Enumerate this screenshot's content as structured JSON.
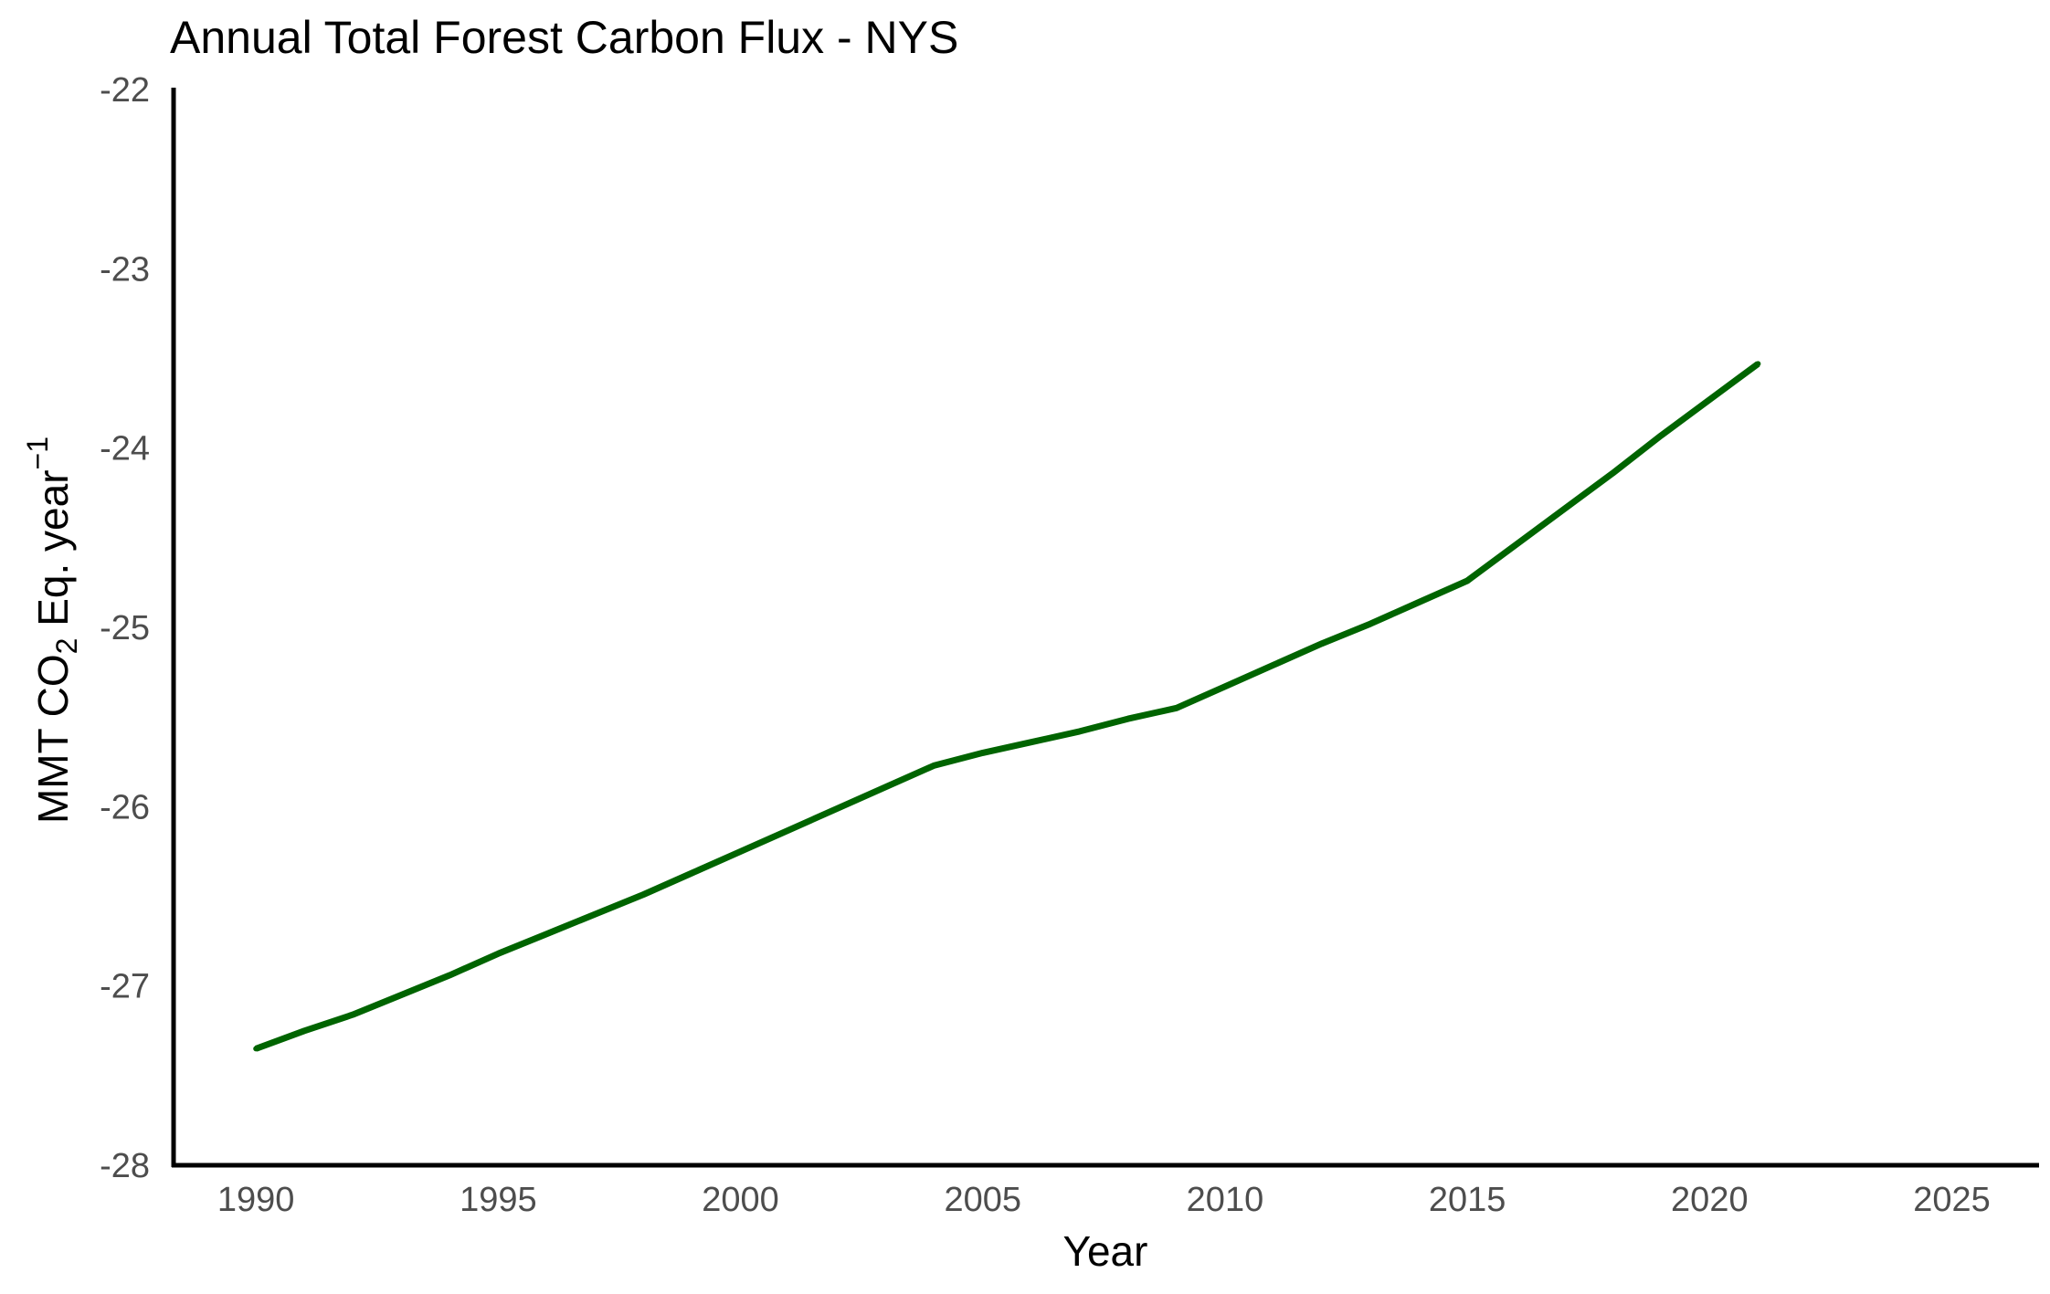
{
  "chart_data": {
    "type": "line",
    "title": "Annual Total Forest Carbon Flux - NYS",
    "xlabel": "Year",
    "ylabel": {
      "prefix": "MMT CO",
      "subscript": "2",
      "middle": " Eq. year",
      "superscript": "−1"
    },
    "xlim": [
      1988.3,
      2026.8
    ],
    "ylim": [
      -28,
      -22
    ],
    "xticks": [
      1990,
      1995,
      2000,
      2005,
      2010,
      2015,
      2020,
      2025
    ],
    "yticks": [
      -28,
      -27,
      -26,
      -25,
      -24,
      -23,
      -22
    ],
    "grid": false,
    "line_color": "#006400",
    "series": [
      {
        "x": [
          1990,
          1991,
          1992,
          1993,
          1994,
          1995,
          1996,
          1997,
          1998,
          1999,
          2000,
          2001,
          2002,
          2003,
          2004,
          2005,
          2006,
          2007,
          2008,
          2009,
          2010,
          2011,
          2012,
          2013,
          2014,
          2015,
          2016,
          2017,
          2018,
          2019,
          2020,
          2021
        ],
        "values": [
          -27.35,
          -27.25,
          -27.16,
          -27.05,
          -26.94,
          -26.82,
          -26.71,
          -26.6,
          -26.49,
          -26.37,
          -26.25,
          -26.13,
          -26.01,
          -25.89,
          -25.77,
          -25.7,
          -25.64,
          -25.58,
          -25.51,
          -25.45,
          -25.33,
          -25.21,
          -25.09,
          -24.98,
          -24.86,
          -24.74,
          -24.54,
          -24.34,
          -24.14,
          -23.93,
          -23.73,
          -23.53
        ]
      }
    ]
  }
}
